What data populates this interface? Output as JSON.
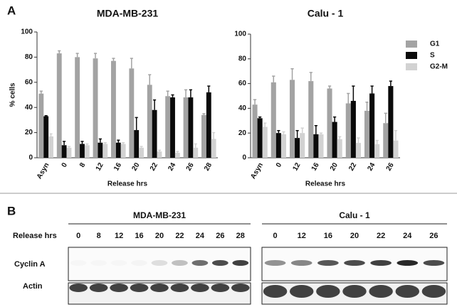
{
  "panel_a": "A",
  "chart_data": [
    {
      "type": "bar",
      "title": "MDA-MB-231",
      "x_label": "Release hrs",
      "y_label": "% cells",
      "categories": [
        "Asyn",
        "0",
        "8",
        "12",
        "16",
        "20",
        "22",
        "24",
        "26",
        "28"
      ],
      "series": [
        {
          "name": "G1",
          "color": "#a3a3a3",
          "values": [
            51,
            83,
            80,
            79,
            77,
            71,
            58,
            49,
            48,
            34
          ],
          "errors": [
            2,
            2,
            3,
            4,
            2,
            8,
            8,
            4,
            6,
            1
          ]
        },
        {
          "name": "S",
          "color": "#0a0a0a",
          "values": [
            33,
            10,
            11,
            12,
            12,
            22,
            38,
            48,
            48,
            52
          ],
          "errors": [
            0.5,
            3,
            2,
            3,
            2,
            10,
            8,
            2,
            6,
            5
          ]
        },
        {
          "name": "G2-M",
          "color": "#d2d2d2",
          "values": [
            17,
            8,
            10,
            11,
            11,
            8,
            5,
            4,
            8,
            15
          ],
          "errors": [
            2,
            1,
            1,
            1,
            1,
            1,
            1,
            1,
            3,
            5
          ]
        }
      ],
      "ylim": [
        0,
        100
      ],
      "yticks": [
        0,
        20,
        40,
        60,
        80,
        100
      ]
    },
    {
      "type": "bar",
      "title": "Calu - 1",
      "x_label": "Release hrs",
      "categories": [
        "Asyn",
        "0",
        "12",
        "16",
        "20",
        "22",
        "24",
        "26"
      ],
      "series": [
        {
          "name": "G1",
          "color": "#a3a3a3",
          "values": [
            43,
            61,
            63,
            62,
            56,
            44,
            38,
            28
          ],
          "errors": [
            4,
            5,
            9,
            7,
            2,
            8,
            7,
            8
          ]
        },
        {
          "name": "S",
          "color": "#0a0a0a",
          "values": [
            32,
            20,
            16,
            19,
            29,
            46,
            52,
            58
          ],
          "errors": [
            1,
            2,
            6,
            7,
            4,
            12,
            6,
            4
          ]
        },
        {
          "name": "G2-M",
          "color": "#d2d2d2",
          "values": [
            25,
            19,
            20,
            19,
            15,
            12,
            11,
            14
          ],
          "errors": [
            3,
            2,
            4,
            1,
            2,
            4,
            3,
            8
          ]
        }
      ],
      "ylim": [
        0,
        100
      ],
      "yticks": [
        0,
        20,
        40,
        60,
        80,
        100
      ],
      "legend": "upper right"
    }
  ],
  "panel_b": {
    "label": "B",
    "row_header": "Release hrs",
    "blots": [
      {
        "title": "MDA-MB-231",
        "lanes": [
          "0",
          "8",
          "12",
          "16",
          "20",
          "22",
          "24",
          "26",
          "28"
        ]
      },
      {
        "title": "Calu - 1",
        "lanes": [
          "0",
          "12",
          "16",
          "20",
          "22",
          "24",
          "26"
        ]
      }
    ],
    "rows": [
      "Cyclin A",
      "Actin"
    ]
  }
}
